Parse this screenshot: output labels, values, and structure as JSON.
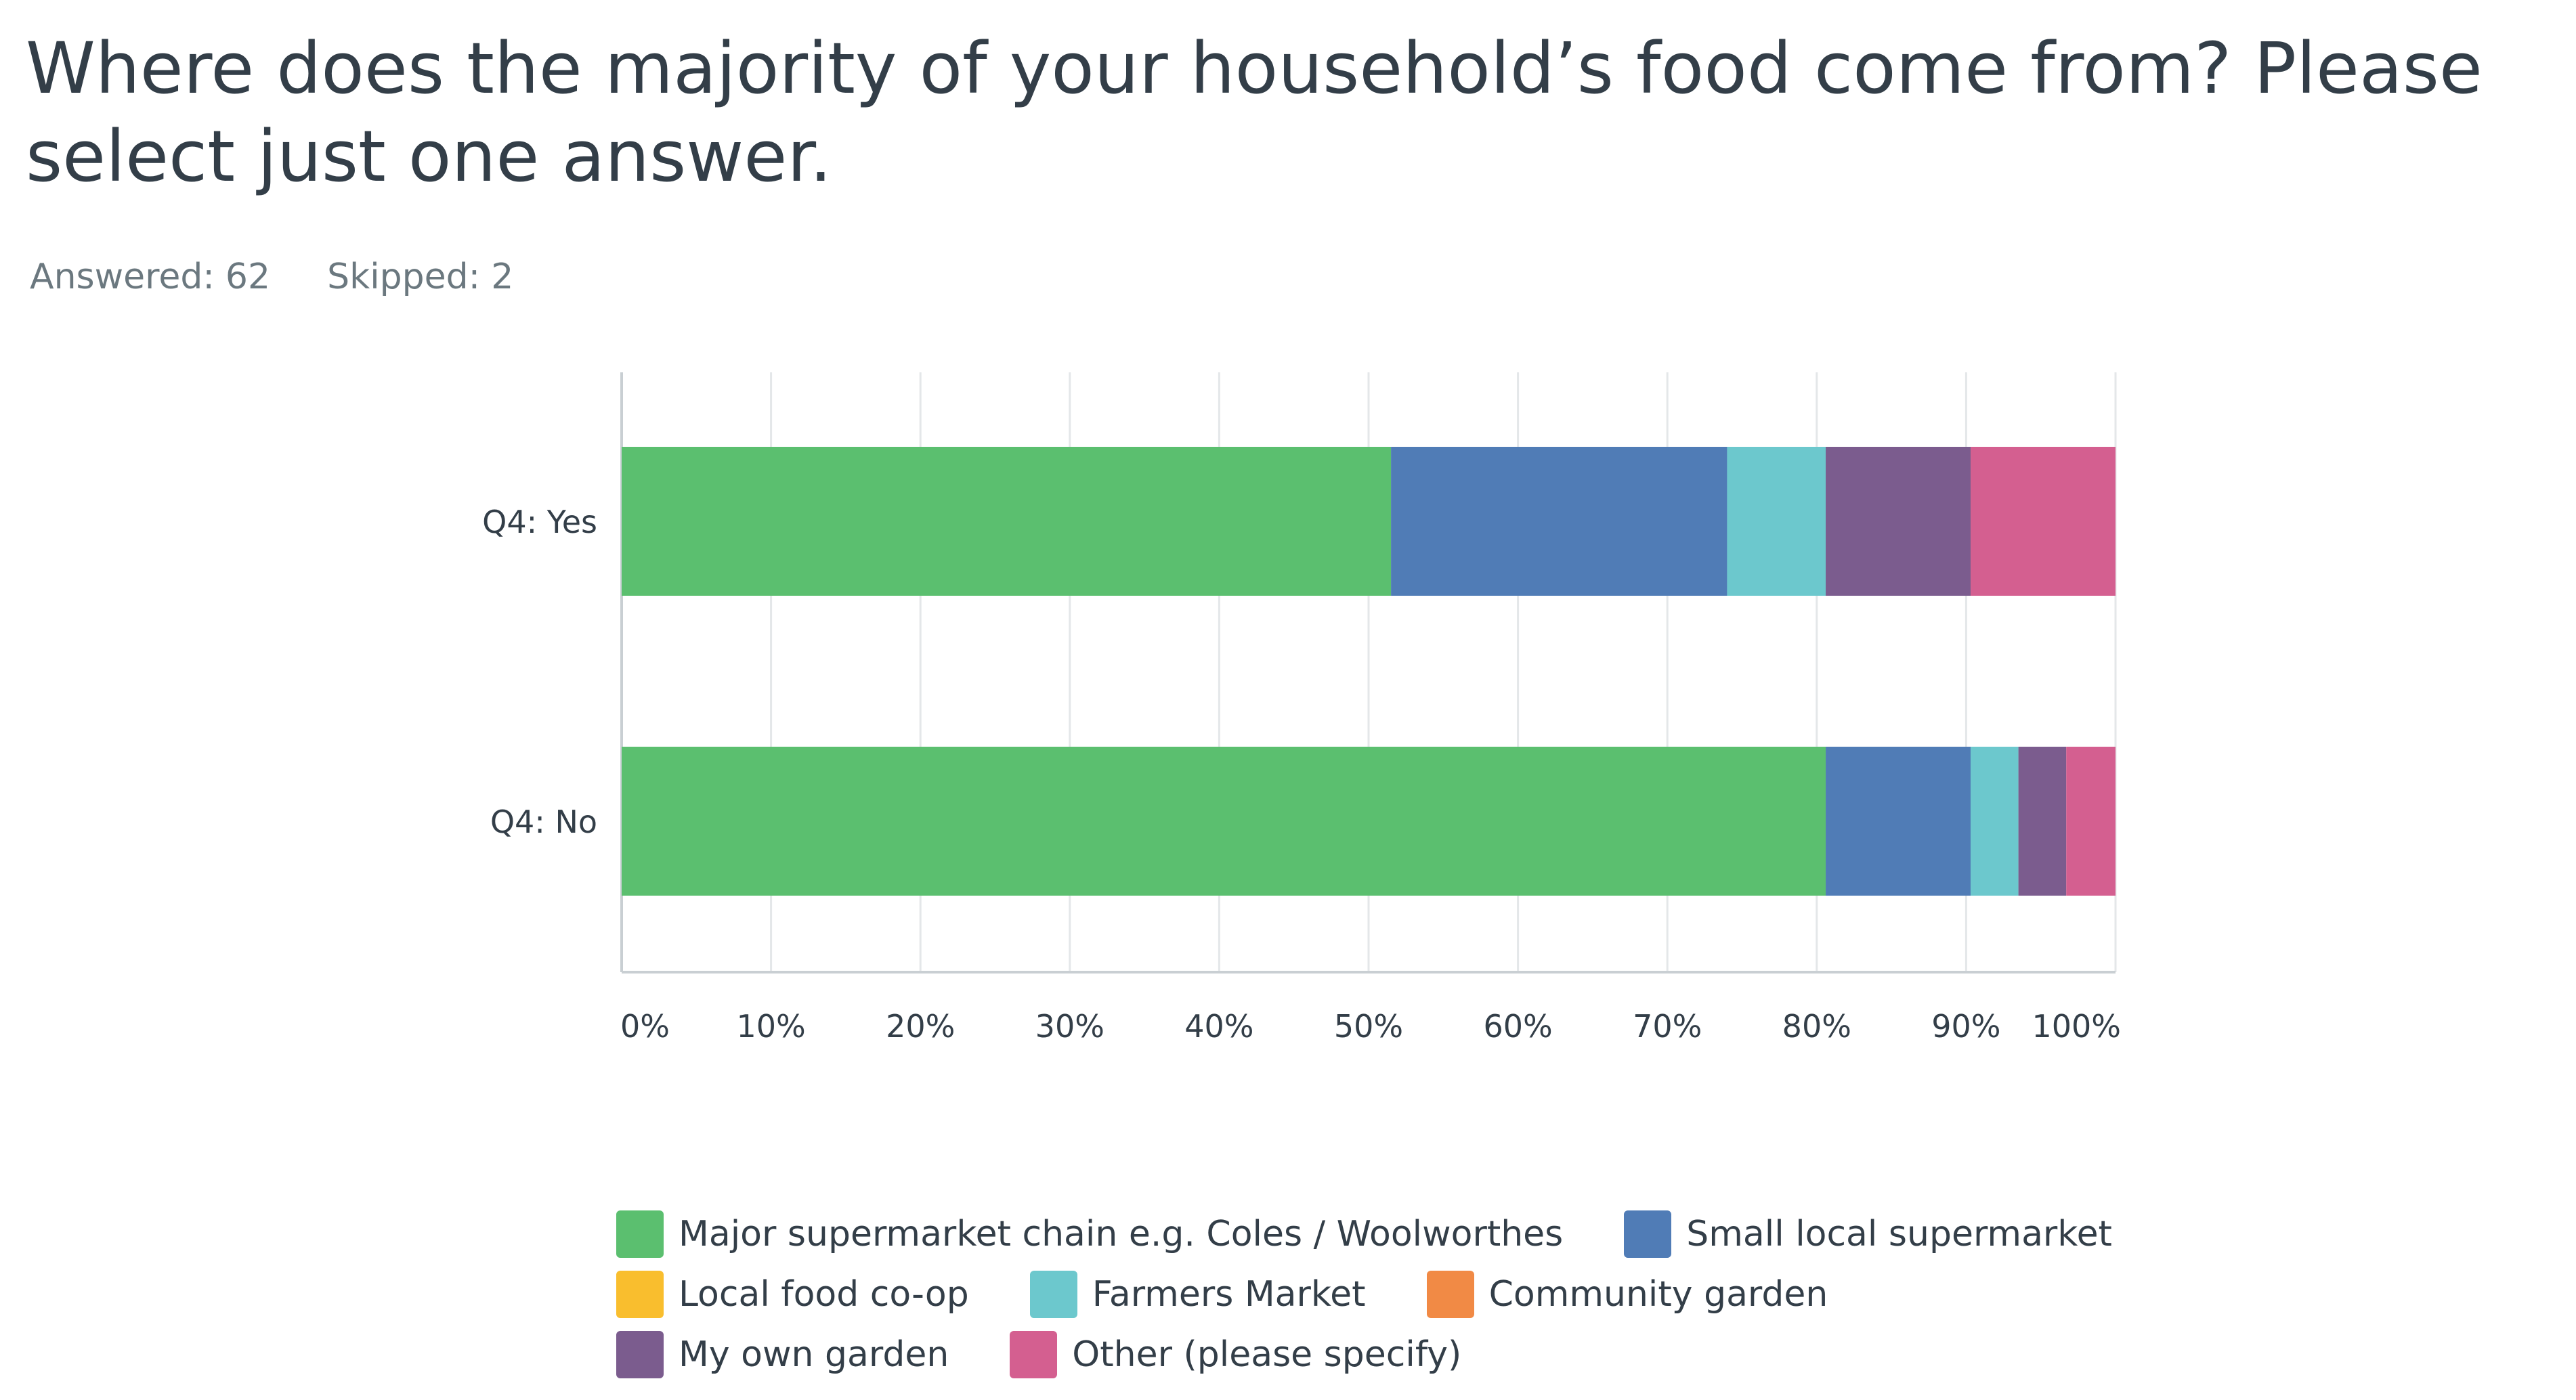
{
  "survey": {
    "question": "Where does the majority of your household’s food come from? Please select just one answer.",
    "answered_label": "Answered:",
    "answered_value": "62",
    "skipped_label": "Skipped:",
    "skipped_value": "2"
  },
  "colors": {
    "grid": "#e4e7e9",
    "axis": "#c9cfd3",
    "tick_text": "#333e48"
  },
  "chart_data": {
    "type": "bar",
    "orientation": "horizontal",
    "stacked": true,
    "title": "Where does the majority of your household’s food come from? Please select just one answer.",
    "xlabel": "",
    "ylabel": "",
    "xlim": [
      0,
      100
    ],
    "x_ticks": [
      "0%",
      "10%",
      "20%",
      "30%",
      "40%",
      "50%",
      "60%",
      "70%",
      "80%",
      "90%",
      "100%"
    ],
    "categories": [
      "Q4: Yes",
      "Q4: No"
    ],
    "grid": true,
    "legend_position": "bottom",
    "series": [
      {
        "name": "Major supermarket chain e.g. Coles / Woolworthes",
        "color": "#5bbf6f",
        "values": [
          51.5,
          80.6
        ]
      },
      {
        "name": "Small local supermarket",
        "color": "#507cb6",
        "values": [
          22.5,
          9.7
        ]
      },
      {
        "name": "Local food co-op",
        "color": "#f9be2e",
        "values": [
          0,
          0
        ]
      },
      {
        "name": "Farmers Market",
        "color": "#6cc8cd",
        "values": [
          6.6,
          3.2
        ]
      },
      {
        "name": "Community garden",
        "color": "#f18a45",
        "values": [
          0,
          0
        ]
      },
      {
        "name": "My own garden",
        "color": "#7b5c8e",
        "values": [
          9.7,
          3.2
        ]
      },
      {
        "name": "Other (please specify)",
        "color": "#d45f90",
        "values": [
          9.7,
          3.3
        ]
      }
    ]
  }
}
